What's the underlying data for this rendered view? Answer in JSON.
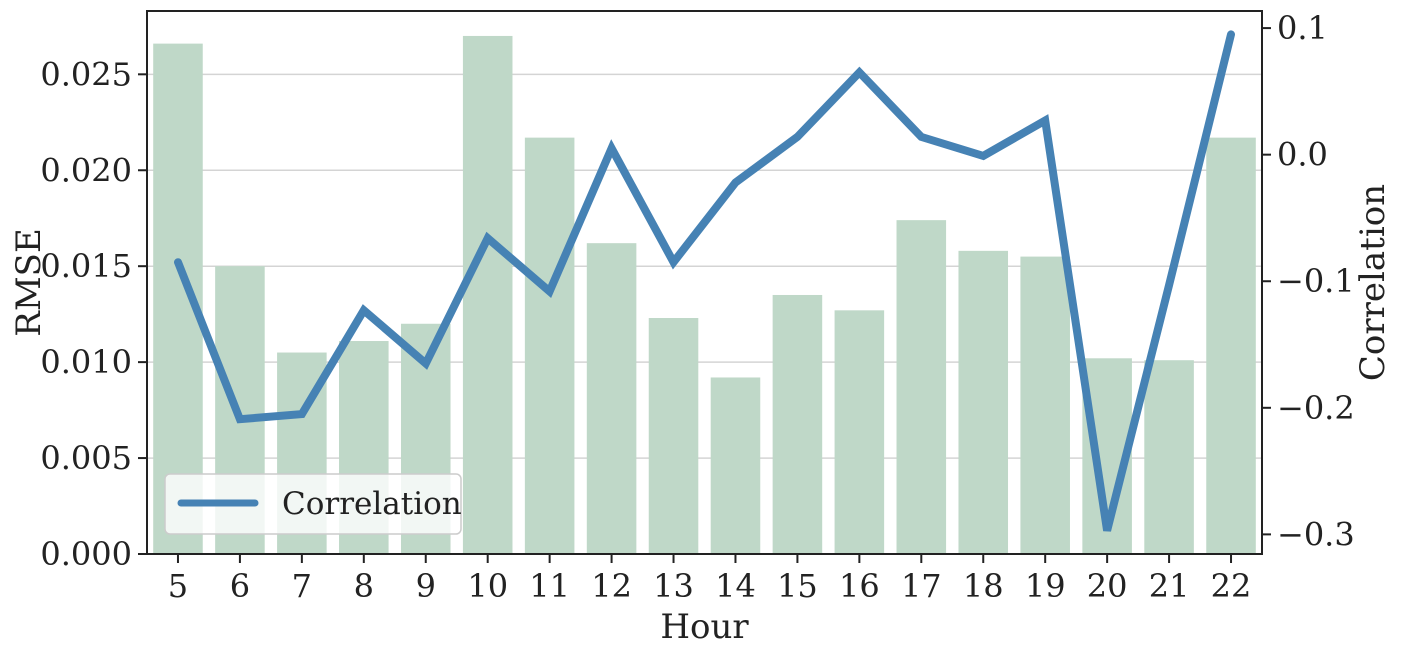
{
  "chart_data": {
    "type": "bar",
    "xlabel": "Hour",
    "ylabel": "RMSE",
    "y2label": "Correlation",
    "categories": [
      "5",
      "6",
      "7",
      "8",
      "9",
      "10",
      "11",
      "12",
      "13",
      "14",
      "15",
      "16",
      "17",
      "18",
      "19",
      "20",
      "21",
      "22"
    ],
    "series": [
      {
        "name": "",
        "type": "bar",
        "axis": "left",
        "color": "#bfd8c8",
        "values": [
          0.0266,
          0.015,
          0.0105,
          0.0111,
          0.012,
          0.027,
          0.0217,
          0.0162,
          0.0123,
          0.0092,
          0.0135,
          0.0127,
          0.0174,
          0.0158,
          0.0155,
          0.0102,
          0.0101,
          0.0217
        ]
      },
      {
        "name": "Correlation",
        "type": "line",
        "axis": "right",
        "color": "#4682b4",
        "values": [
          -0.085,
          -0.209,
          -0.205,
          -0.123,
          -0.165,
          -0.066,
          -0.108,
          0.005,
          -0.085,
          -0.022,
          0.014,
          0.065,
          0.014,
          -0.001,
          0.027,
          -0.297,
          -0.103,
          0.095
        ]
      }
    ],
    "ylim": [
      0,
      0.0283
    ],
    "y2lim": [
      -0.3155,
      0.1135
    ],
    "yticks": [
      "0.000",
      "0.005",
      "0.010",
      "0.015",
      "0.020",
      "0.025"
    ],
    "yticks_values": [
      0,
      0.005,
      0.01,
      0.015,
      0.02,
      0.025
    ],
    "y2ticks": [
      "−0.3",
      "−0.2",
      "−0.1",
      "0.0",
      "0.1"
    ],
    "y2ticks_values": [
      -0.3,
      -0.2,
      -0.1,
      0.0,
      0.1
    ],
    "grid": true,
    "legend": {
      "entries": [
        "Correlation"
      ],
      "placement": "lower-left"
    }
  }
}
